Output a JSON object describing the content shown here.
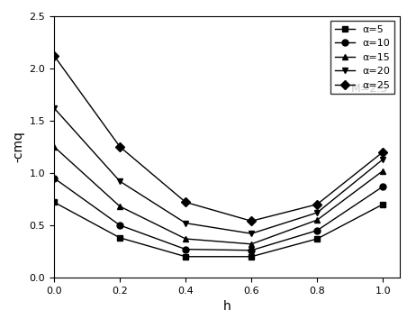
{
  "chart_data": {
    "type": "line",
    "x_label": "h",
    "y_label": "-cmq",
    "annotations": [
      "M=2.5"
    ],
    "x": [
      0.0,
      0.2,
      0.4,
      0.6,
      0.8,
      1.0
    ],
    "series": [
      {
        "name": "α=5",
        "color": "#000000",
        "marker": "square",
        "values": [
          0.72,
          0.38,
          0.2,
          0.2,
          0.37,
          0.7
        ]
      },
      {
        "name": "α=10",
        "color": "#000000",
        "marker": "circle",
        "values": [
          0.95,
          0.5,
          0.27,
          0.26,
          0.45,
          0.87
        ]
      },
      {
        "name": "α=15",
        "color": "#000000",
        "marker": "triangle_up",
        "values": [
          1.25,
          0.68,
          0.37,
          0.32,
          0.55,
          1.02
        ]
      },
      {
        "name": "α=20",
        "color": "#000000",
        "marker": "triangle_down",
        "values": [
          1.62,
          0.92,
          0.52,
          0.42,
          0.62,
          1.13
        ]
      },
      {
        "name": "α=25",
        "color": "#000000",
        "marker": "diamond",
        "values": [
          2.12,
          1.25,
          0.72,
          0.54,
          0.7,
          1.2
        ]
      }
    ],
    "xlim": [
      0.0,
      1.05
    ],
    "xticks": [
      0.0,
      0.2,
      0.4,
      0.6,
      0.8,
      1.0
    ],
    "ylim": [
      0.0,
      2.5
    ],
    "yticks": [
      0.0,
      0.5,
      1.0,
      1.5,
      2.0,
      2.5
    ],
    "legend": "upper right",
    "grid": false
  }
}
